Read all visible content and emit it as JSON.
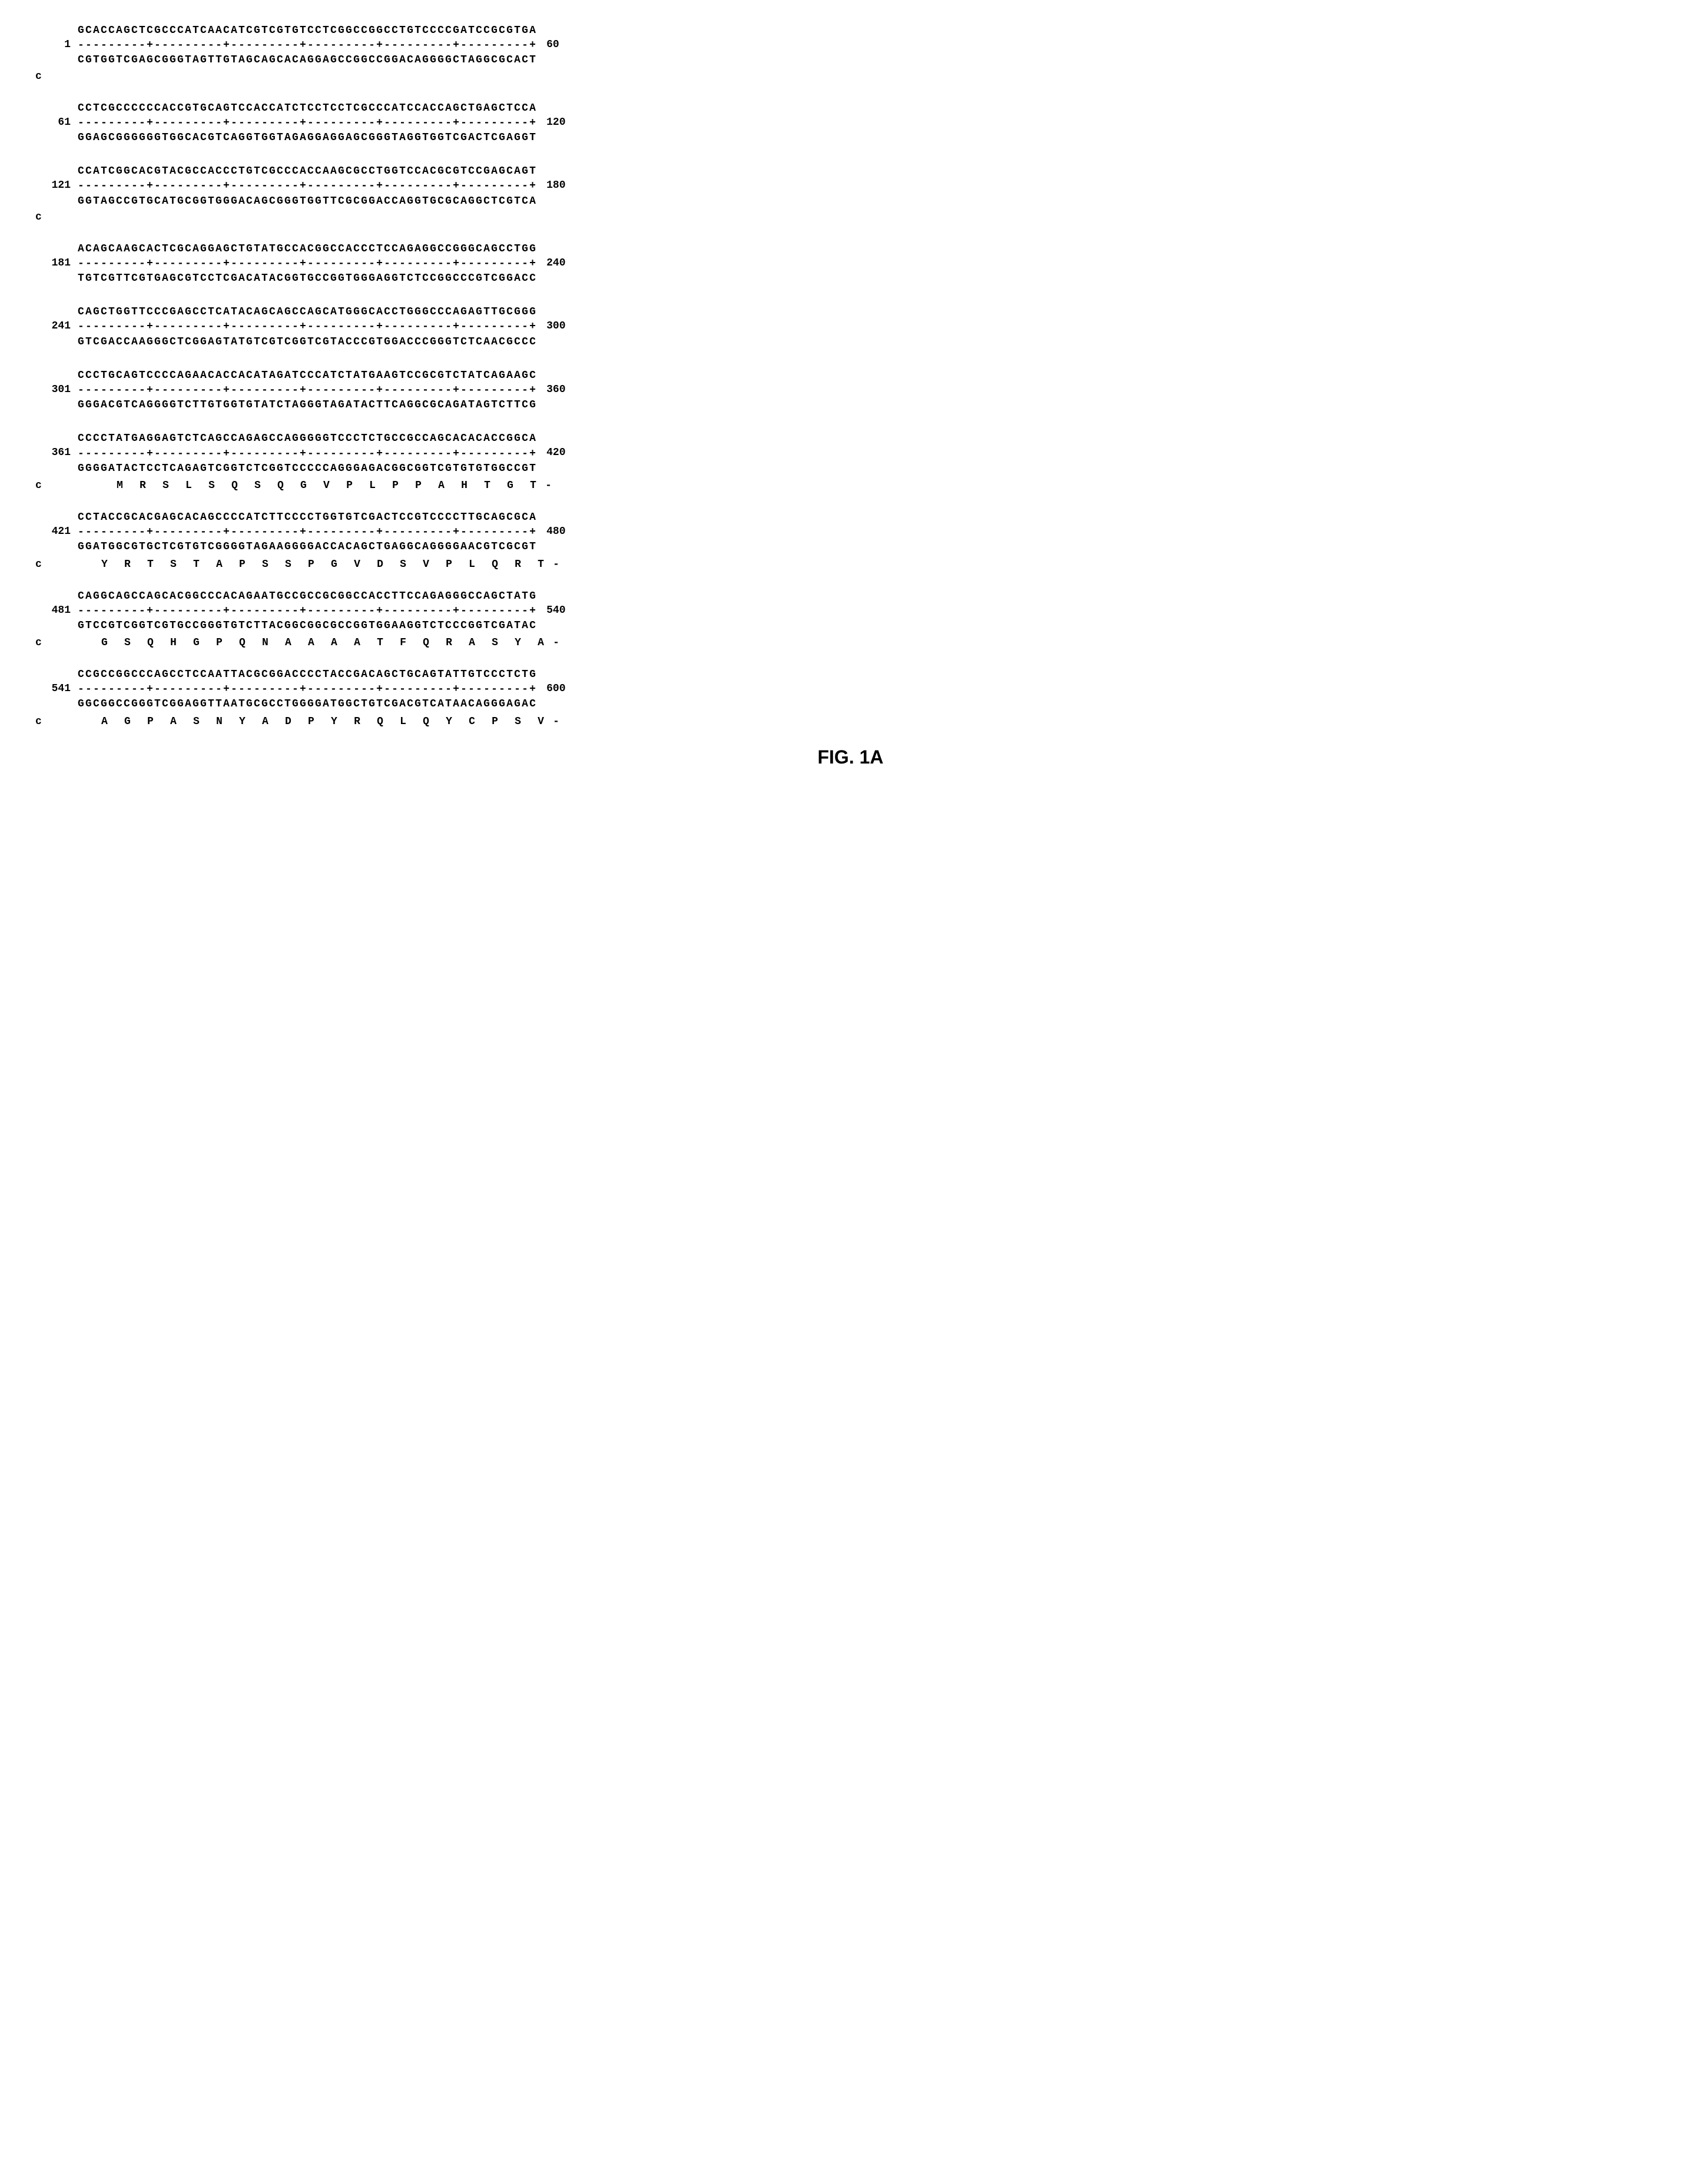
{
  "figure_label": "FIG. 1A",
  "ruler": "---------+---------+---------+---------+---------+---------+",
  "blocks": [
    {
      "start": "1",
      "end": "60",
      "top": "GCACCAGCTCGCCCATCAACATCGTCGTGTCCTCGGCCGGCCTGTCCCCGATCCGCGTGA",
      "bottom": "CGTGGTCGAGCGGGTAGTTGTAGCAGCACAGGAGCCGGCCGGACAGGGGCTAGGCGCACT",
      "c_after": true
    },
    {
      "start": "61",
      "end": "120",
      "top": "CCTCGCCCCCCACCGTGCAGTCCACCATCTCCTCCTCGCCCATCCACCAGCTGAGCTCCA",
      "bottom": "GGAGCGGGGGGTGGCACGTCAGGTGGTAGAGGAGGAGCGGGTAGGTGGTCGACTCGAGGT"
    },
    {
      "start": "121",
      "end": "180",
      "top": "CCATCGGCACGTACGCCACCCTGTCGCCCACCAAGCGCCTGGTCCACGCGTCCGAGCAGT",
      "bottom": "GGTAGCCGTGCATGCGGTGGGACAGCGGGTGGTTCGCGGACCAGGTGCGCAGGCTCGTCA",
      "c_after": true
    },
    {
      "start": "181",
      "end": "240",
      "top": "ACAGCAAGCACTCGCAGGAGCTGTATGCCACGGCCACCCTCCAGAGGCCGGGCAGCCTGG",
      "bottom": "TGTCGTTCGTGAGCGTCCTCGACATACGGTGCCGGTGGGAGGTCTCCGGCCCGTCGGACC"
    },
    {
      "start": "241",
      "end": "300",
      "top": "CAGCTGGTTCCCGAGCCTCATACAGCAGCCAGCATGGGCACCTGGGCCCAGAGTTGCGGG",
      "bottom": "GTCGACCAAGGGCTCGGAGTATGTCGTCGGTCGTACCCGTGGACCCGGGTCTCAACGCCC"
    },
    {
      "start": "301",
      "end": "360",
      "top": "CCCTGCAGTCCCCAGAACACCACATAGATCCCATCTATGAAGTCCGCGTCTATCAGAAGC",
      "bottom": "GGGACGTCAGGGGTCTTGTGGTGTATCTAGGGTAGATACTTCAGGCGCAGATAGTCTTCG"
    },
    {
      "start": "361",
      "end": "420",
      "top": "CCCCTATGAGGAGTCTCAGCCAGAGCCAGGGGGTCCCTCTGCCGCCAGCACACACCGGCA",
      "bottom": "GGGGATACTCCTCAGAGTCGGTCTCGGTCCCCCAGGGAGACGGCGGTCGTGTGTGGCCGT",
      "protein": "   M  R  S  L  S  Q  S  Q  G  V  P  L  P  P  A  H  T  G  T -"
    },
    {
      "start": "421",
      "end": "480",
      "top": "CCTACCGCACGAGCACAGCCCCATCTTCCCCTGGTGTCGACTCCGTCCCCTTGCAGCGCA",
      "bottom": "GGATGGCGTGCTCGTGTCGGGGTAGAAGGGGACCACAGCTGAGGCAGGGGAACGTCGCGT",
      "protein": " Y  R  T  S  T  A  P  S  S  P  G  V  D  S  V  P  L  Q  R  T -"
    },
    {
      "start": "481",
      "end": "540",
      "top": "CAGGCAGCCAGCACGGCCCACAGAATGCCGCCGCGGCCACCTTCCAGAGGGCCAGCTATG",
      "bottom": "GTCCGTCGGTCGTGCCGGGTGTCTTACGGCGGCGCCGGTGGAAGGTCTCCCGGTCGATAC",
      "protein": " G  S  Q  H  G  P  Q  N  A  A  A  A  T  F  Q  R  A  S  Y  A -"
    },
    {
      "start": "541",
      "end": "600",
      "top": "CCGCCGGCCCAGCCTCCAATTACGCGGACCCCTACCGACAGCTGCAGTATTGTCCCTCTG",
      "bottom": "GGCGGCCGGGTCGGAGGTTAATGCGCCTGGGGATGGCTGTCGACGTCATAACAGGGAGAC",
      "protein": " A  G  P  A  S  N  Y  A  D  P  Y  R  Q  L  Q  Y  C  P  S  V -"
    }
  ]
}
